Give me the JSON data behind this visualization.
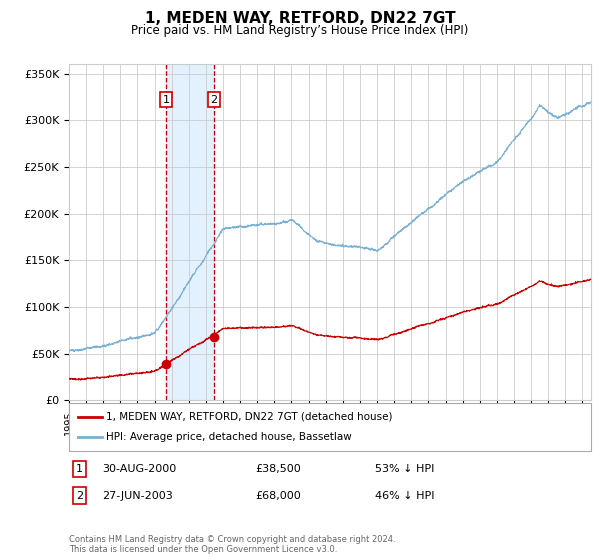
{
  "title": "1, MEDEN WAY, RETFORD, DN22 7GT",
  "subtitle": "Price paid vs. HM Land Registry’s House Price Index (HPI)",
  "hpi_color": "#7ab0d4",
  "price_color": "#cc0000",
  "marker_color": "#cc0000",
  "background_color": "#ffffff",
  "grid_color": "#cccccc",
  "highlight_color": "#ddeeff",
  "sale1_date_num": 2000.66,
  "sale1_price": 38500,
  "sale1_label": "30-AUG-2000",
  "sale1_pct": "53% ↓ HPI",
  "sale2_date_num": 2003.48,
  "sale2_price": 68000,
  "sale2_label": "27-JUN-2003",
  "sale2_pct": "46% ↓ HPI",
  "xmin": 1995.0,
  "xmax": 2025.5,
  "ymin": 0,
  "ymax": 360000,
  "yticks": [
    0,
    50000,
    100000,
    150000,
    200000,
    250000,
    300000,
    350000
  ],
  "ytick_labels": [
    "£0",
    "£50K",
    "£100K",
    "£150K",
    "£200K",
    "£250K",
    "£300K",
    "£350K"
  ],
  "legend_line1": "1, MEDEN WAY, RETFORD, DN22 7GT (detached house)",
  "legend_line2": "HPI: Average price, detached house, Bassetlaw",
  "footer": "Contains HM Land Registry data © Crown copyright and database right 2024.\nThis data is licensed under the Open Government Licence v3.0."
}
